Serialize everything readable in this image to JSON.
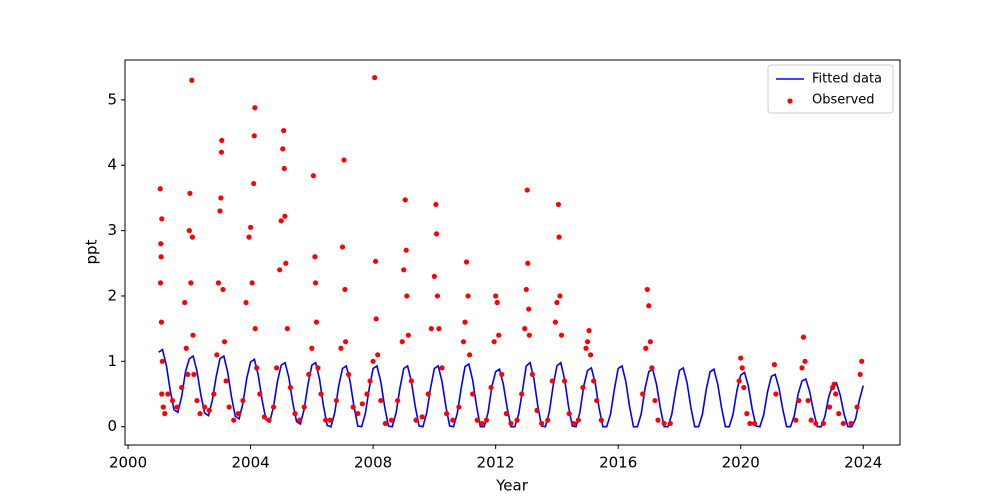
{
  "chart_data": {
    "type": "line",
    "x_label": "Year",
    "y_label": "ppt",
    "xlim": [
      1999.9,
      2025.2
    ],
    "ylim": [
      -0.28,
      5.61
    ],
    "xticks": [
      2000,
      2004,
      2008,
      2012,
      2016,
      2020,
      2024
    ],
    "yticks": [
      0,
      1,
      2,
      3,
      4,
      5
    ],
    "legend": "upper right",
    "series": [
      {
        "name": "Fitted data",
        "type": "line",
        "color": "#0000ff",
        "x": [
          2001,
          2001.125,
          2001.25,
          2001.375,
          2001.5,
          2001.625,
          2001.75,
          2001.875,
          2002,
          2002.125,
          2002.25,
          2002.375,
          2002.5,
          2002.625,
          2002.75,
          2002.875,
          2003,
          2003.125,
          2003.25,
          2003.375,
          2003.5,
          2003.625,
          2003.75,
          2003.875,
          2004,
          2004.125,
          2004.25,
          2004.375,
          2004.5,
          2004.625,
          2004.75,
          2004.875,
          2005,
          2005.125,
          2005.25,
          2005.375,
          2005.5,
          2005.625,
          2005.75,
          2005.875,
          2006,
          2006.125,
          2006.25,
          2006.375,
          2006.5,
          2006.625,
          2006.75,
          2006.875,
          2007,
          2007.125,
          2007.25,
          2007.375,
          2007.5,
          2007.625,
          2007.75,
          2007.875,
          2008,
          2008.125,
          2008.25,
          2008.375,
          2008.5,
          2008.625,
          2008.75,
          2008.875,
          2009,
          2009.125,
          2009.25,
          2009.375,
          2009.5,
          2009.625,
          2009.75,
          2009.875,
          2010,
          2010.125,
          2010.25,
          2010.375,
          2010.5,
          2010.625,
          2010.75,
          2010.875,
          2011,
          2011.125,
          2011.25,
          2011.375,
          2011.5,
          2011.625,
          2011.75,
          2011.875,
          2012,
          2012.125,
          2012.25,
          2012.375,
          2012.5,
          2012.625,
          2012.75,
          2012.875,
          2013,
          2013.125,
          2013.25,
          2013.375,
          2013.5,
          2013.625,
          2013.75,
          2013.875,
          2014,
          2014.125,
          2014.25,
          2014.375,
          2014.5,
          2014.625,
          2014.75,
          2014.875,
          2015,
          2015.125,
          2015.25,
          2015.375,
          2015.5,
          2015.625,
          2015.75,
          2015.875,
          2016,
          2016.125,
          2016.25,
          2016.375,
          2016.5,
          2016.625,
          2016.75,
          2016.875,
          2017,
          2017.125,
          2017.25,
          2017.375,
          2017.5,
          2017.625,
          2017.75,
          2017.875,
          2018,
          2018.125,
          2018.25,
          2018.375,
          2018.5,
          2018.625,
          2018.75,
          2018.875,
          2019,
          2019.125,
          2019.25,
          2019.375,
          2019.5,
          2019.625,
          2019.75,
          2019.875,
          2020,
          2020.125,
          2020.25,
          2020.375,
          2020.5,
          2020.625,
          2020.75,
          2020.875,
          2021,
          2021.125,
          2021.25,
          2021.375,
          2021.5,
          2021.625,
          2021.75,
          2021.875,
          2022,
          2022.125,
          2022.25,
          2022.375,
          2022.5,
          2022.625,
          2022.75,
          2022.875,
          2023,
          2023.125,
          2023.25,
          2023.375,
          2023.5,
          2023.625,
          2023.75,
          2023.875,
          2024
        ],
        "values": [
          1.14,
          1.18,
          0.94,
          0.56,
          0.26,
          0.22,
          0.46,
          0.84,
          1.04,
          1.08,
          0.85,
          0.49,
          0.21,
          0.17,
          0.4,
          0.76,
          1.04,
          1.08,
          0.84,
          0.46,
          0.16,
          0.12,
          0.36,
          0.74,
          0.99,
          1.03,
          0.79,
          0.41,
          0.11,
          0.07,
          0.31,
          0.69,
          0.94,
          0.98,
          0.75,
          0.37,
          0.08,
          0.04,
          0.27,
          0.65,
          0.94,
          0.98,
          0.73,
          0.33,
          0.02,
          0,
          0.22,
          0.62,
          0.89,
          0.93,
          0.69,
          0.31,
          0.01,
          0,
          0.21,
          0.59,
          0.89,
          0.93,
          0.69,
          0.31,
          0.01,
          0,
          0.21,
          0.59,
          0.89,
          0.93,
          0.69,
          0.31,
          0.01,
          0,
          0.21,
          0.59,
          0.89,
          0.93,
          0.69,
          0.31,
          0.01,
          0,
          0.21,
          0.59,
          0.92,
          0.96,
          0.71,
          0.32,
          0,
          0,
          0.21,
          0.61,
          0.84,
          0.88,
          0.65,
          0.29,
          0,
          0,
          0.19,
          0.55,
          0.93,
          0.98,
          0.73,
          0.32,
          0.01,
          0,
          0.22,
          0.62,
          0.93,
          0.98,
          0.73,
          0.32,
          0.01,
          0,
          0.22,
          0.62,
          0.86,
          0.9,
          0.67,
          0.29,
          0,
          0,
          0.19,
          0.57,
          0.89,
          0.93,
          0.69,
          0.3,
          0,
          0,
          0.19,
          0.58,
          0.84,
          0.88,
          0.65,
          0.29,
          0,
          0,
          0.19,
          0.55,
          0.86,
          0.9,
          0.67,
          0.29,
          0,
          0,
          0.19,
          0.57,
          0.84,
          0.88,
          0.65,
          0.29,
          0,
          0,
          0.19,
          0.55,
          0.79,
          0.83,
          0.62,
          0.27,
          0.01,
          0,
          0.18,
          0.53,
          0.77,
          0.8,
          0.59,
          0.26,
          0,
          0,
          0.17,
          0.5,
          0.7,
          0.73,
          0.54,
          0.24,
          0,
          0,
          0.16,
          0.46,
          0.63,
          0.67,
          0.48,
          0.19,
          0,
          0,
          0.12,
          0.41,
          0.63
        ]
      },
      {
        "name": "Observed",
        "type": "scatter",
        "color": "#ff0000",
        "x": [
          2001.05,
          2001.07,
          2001.08,
          2001.06,
          2001.1,
          2001.09,
          2001.12,
          2001.1,
          2001.15,
          2001.2,
          2001.3,
          2001.45,
          2001.6,
          2001.75,
          2001.85,
          2001.9,
          2001.95,
          2002.0,
          2002.05,
          2002.08,
          2002.02,
          2002.1,
          2002.12,
          2002.15,
          2002.25,
          2002.35,
          2002.5,
          2002.65,
          2002.8,
          2002.9,
          2002.95,
          2003.0,
          2003.05,
          2003.06,
          2003.03,
          2003.1,
          2003.15,
          2003.2,
          2003.3,
          2003.45,
          2003.6,
          2003.75,
          2003.85,
          2003.95,
          2004.0,
          2004.1,
          2004.12,
          2004.14,
          2004.05,
          2004.15,
          2004.2,
          2004.3,
          2004.45,
          2004.6,
          2004.75,
          2004.85,
          2004.95,
          2005.0,
          2005.05,
          2005.08,
          2005.1,
          2005.12,
          2005.15,
          2005.2,
          2005.3,
          2005.45,
          2005.6,
          2005.75,
          2005.9,
          2006.0,
          2006.05,
          2006.1,
          2006.12,
          2006.15,
          2006.2,
          2006.3,
          2006.45,
          2006.6,
          2006.8,
          2006.95,
          2007.0,
          2007.05,
          2007.08,
          2007.1,
          2007.2,
          2007.35,
          2007.5,
          2007.65,
          2007.8,
          2007.9,
          2008.0,
          2008.05,
          2008.08,
          2008.1,
          2008.15,
          2008.25,
          2008.4,
          2008.6,
          2008.8,
          2008.95,
          2009.0,
          2009.05,
          2009.08,
          2009.1,
          2009.15,
          2009.25,
          2009.4,
          2009.6,
          2009.8,
          2009.9,
          2010.0,
          2010.05,
          2010.07,
          2010.1,
          2010.15,
          2010.25,
          2010.4,
          2010.6,
          2010.8,
          2010.95,
          2011.0,
          2011.05,
          2011.1,
          2011.15,
          2011.25,
          2011.4,
          2011.55,
          2011.7,
          2011.85,
          2011.95,
          2012.0,
          2012.05,
          2012.1,
          2012.2,
          2012.35,
          2012.5,
          2012.7,
          2012.85,
          2012.95,
          2013.0,
          2013.03,
          2013.05,
          2013.08,
          2013.1,
          2013.2,
          2013.35,
          2013.5,
          2013.7,
          2013.85,
          2013.95,
          2014.0,
          2014.05,
          2014.07,
          2014.1,
          2014.15,
          2014.25,
          2014.4,
          2014.55,
          2014.7,
          2014.85,
          2014.95,
          2015.0,
          2015.05,
          2015.1,
          2015.2,
          2015.3,
          2015.45,
          2016.8,
          2016.9,
          2016.95,
          2017.0,
          2017.05,
          2017.1,
          2017.2,
          2017.3,
          2017.5,
          2017.7,
          2019.95,
          2020.0,
          2020.05,
          2020.1,
          2020.2,
          2020.3,
          2020.45,
          2021.1,
          2021.15,
          2021.8,
          2021.9,
          2022.0,
          2022.05,
          2022.1,
          2022.2,
          2022.3,
          2022.45,
          2022.7,
          2022.9,
          2023.0,
          2023.05,
          2023.1,
          2023.2,
          2023.35,
          2023.6,
          2023.8,
          2023.9,
          2023.95
        ],
        "values": [
          3.64,
          2.8,
          2.6,
          2.2,
          3.18,
          1.6,
          1.0,
          0.5,
          0.3,
          0.2,
          0.5,
          0.4,
          0.3,
          0.6,
          1.9,
          1.2,
          0.8,
          3.0,
          2.2,
          5.3,
          3.57,
          2.9,
          1.4,
          0.8,
          0.4,
          0.2,
          0.3,
          0.25,
          0.5,
          1.1,
          2.2,
          3.3,
          4.2,
          4.38,
          3.5,
          2.1,
          1.3,
          0.7,
          0.3,
          0.1,
          0.2,
          0.4,
          1.9,
          2.9,
          3.05,
          3.72,
          4.45,
          4.88,
          2.2,
          1.5,
          0.9,
          0.5,
          0.15,
          0.1,
          0.3,
          0.9,
          2.4,
          3.15,
          4.25,
          4.53,
          3.95,
          3.22,
          2.5,
          1.5,
          0.6,
          0.2,
          0.1,
          0.3,
          0.8,
          1.2,
          3.84,
          2.6,
          2.2,
          1.6,
          0.9,
          0.5,
          0.1,
          0.1,
          0.4,
          1.2,
          2.75,
          4.08,
          2.1,
          1.3,
          0.8,
          0.3,
          0.2,
          0.35,
          0.5,
          0.7,
          1.0,
          5.34,
          2.53,
          1.65,
          1.1,
          0.4,
          0.05,
          0.1,
          0.4,
          1.3,
          2.4,
          3.47,
          2.7,
          2.0,
          1.4,
          0.7,
          0.1,
          0.15,
          0.5,
          1.5,
          2.3,
          3.4,
          2.95,
          2.0,
          1.5,
          0.9,
          0.2,
          0.1,
          0.3,
          1.3,
          1.6,
          2.52,
          2.0,
          1.1,
          0.5,
          0.1,
          0.05,
          0.1,
          0.6,
          1.3,
          2.0,
          1.9,
          1.4,
          0.8,
          0.2,
          0.05,
          0.1,
          0.5,
          1.5,
          2.1,
          3.62,
          2.5,
          1.8,
          1.4,
          0.8,
          0.25,
          0.05,
          0.1,
          0.7,
          1.6,
          1.9,
          3.4,
          2.9,
          2.0,
          1.4,
          0.7,
          0.2,
          0.05,
          0.1,
          0.6,
          1.2,
          1.3,
          1.47,
          1.1,
          0.7,
          0.4,
          0.1,
          0.5,
          1.2,
          2.1,
          1.85,
          1.3,
          0.9,
          0.4,
          0.1,
          0.05,
          0.05,
          0.7,
          1.05,
          0.9,
          0.6,
          0.2,
          0.05,
          0.05,
          0.95,
          0.5,
          0.1,
          0.4,
          0.9,
          1.37,
          1.0,
          0.4,
          0.1,
          0.05,
          0.05,
          0.3,
          0.6,
          0.65,
          0.5,
          0.2,
          0.05,
          0.05,
          0.3,
          0.8,
          1.0
        ]
      }
    ]
  }
}
